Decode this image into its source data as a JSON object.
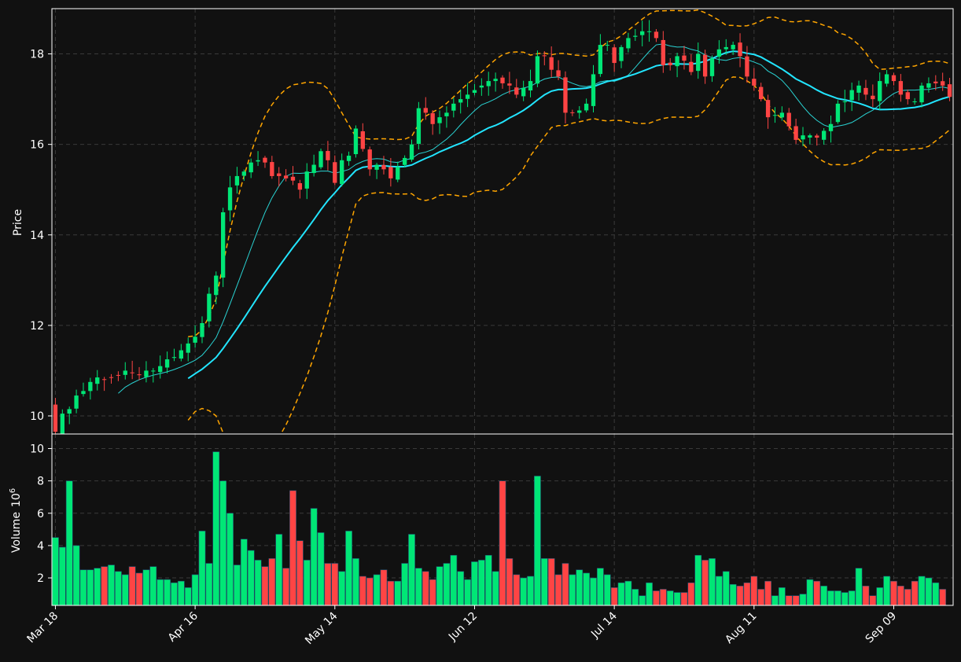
{
  "chart_data": {
    "type": "candlestick",
    "title": "",
    "theme": {
      "background": "#111111",
      "grid": "#3a3a3a",
      "axis": "#ffffff",
      "up_color": "#00e676",
      "down_color": "#ff4444",
      "ma_fast_color": "#2ad4d4",
      "ma_slow_color": "#22e5ff",
      "band_color": "#ffa500"
    },
    "price_panel": {
      "ylabel": "Price",
      "ylim": [
        9.6,
        19.0
      ],
      "yticks": [
        10,
        12,
        14,
        16,
        18
      ],
      "grid": true
    },
    "volume_panel": {
      "ylabel": "Volume",
      "ylabel_exp": "6",
      "ylabel_base": "10",
      "ylim": [
        0.3,
        10.9
      ],
      "yticks": [
        2,
        4,
        6,
        8,
        10
      ],
      "grid": true
    },
    "x_axis": {
      "tick_labels": [
        "Mar 18",
        "Apr 16",
        "May 14",
        "Jun 12",
        "Jul 14",
        "Aug 11",
        "Sep 09"
      ],
      "tick_indices": [
        0,
        20,
        40,
        60,
        80,
        100,
        120
      ],
      "count": 128
    },
    "series": [
      {
        "name": "",
        "kind": "moving_average_fast",
        "period": 10
      },
      {
        "name": "",
        "kind": "moving_average_slow",
        "period": 20
      },
      {
        "name": "",
        "kind": "bollinger_band",
        "period": 20
      }
    ],
    "closes": [
      9.65,
      10.05,
      10.15,
      10.45,
      10.55,
      10.75,
      10.85,
      10.8,
      10.85,
      10.9,
      11.0,
      10.95,
      10.9,
      11.0,
      11.0,
      11.1,
      11.25,
      11.3,
      11.45,
      11.6,
      11.75,
      12.05,
      12.7,
      13.1,
      14.5,
      15.05,
      15.3,
      15.4,
      15.6,
      15.65,
      15.6,
      15.3,
      15.3,
      15.25,
      15.2,
      15.0,
      15.4,
      15.55,
      15.85,
      15.65,
      15.15,
      15.65,
      15.75,
      16.35,
      15.9,
      15.45,
      15.55,
      15.45,
      15.25,
      15.5,
      15.7,
      16.0,
      16.8,
      16.7,
      16.45,
      16.6,
      16.7,
      16.9,
      17.0,
      17.1,
      17.2,
      17.3,
      17.4,
      17.45,
      17.35,
      17.3,
      17.1,
      17.25,
      17.4,
      17.95,
      17.95,
      17.65,
      17.5,
      16.7,
      16.7,
      16.75,
      16.9,
      17.55,
      18.2,
      18.2,
      17.8,
      18.15,
      18.35,
      18.4,
      18.5,
      18.5,
      18.35,
      17.75,
      17.75,
      17.95,
      17.85,
      17.6,
      18.0,
      17.5,
      17.9,
      18.1,
      18.15,
      18.2,
      17.95,
      17.5,
      17.3,
      17.0,
      16.6,
      16.65,
      16.7,
      16.4,
      16.1,
      16.2,
      16.2,
      16.15,
      16.3,
      16.45,
      16.9,
      16.95,
      17.2,
      17.3,
      17.1,
      17.0,
      17.4,
      17.55,
      17.4,
      17.1,
      17.0,
      16.95,
      17.3,
      17.35,
      17.35,
      17.3,
      17.05
    ],
    "volumes": [
      4.5,
      3.9,
      8.0,
      4.0,
      2.5,
      2.5,
      2.6,
      2.7,
      2.8,
      2.4,
      2.2,
      2.7,
      2.3,
      2.5,
      2.7,
      1.9,
      1.9,
      1.7,
      1.8,
      1.4,
      2.2,
      4.9,
      2.9,
      9.8,
      8.0,
      6.0,
      2.8,
      4.4,
      3.7,
      3.1,
      2.7,
      3.2,
      4.7,
      2.6,
      7.4,
      4.3,
      3.1,
      6.3,
      4.8,
      2.9,
      2.9,
      2.4,
      4.9,
      3.2,
      2.1,
      2.0,
      2.2,
      2.5,
      1.8,
      1.8,
      2.9,
      4.7,
      2.6,
      2.4,
      1.9,
      2.7,
      2.9,
      3.4,
      2.4,
      1.9,
      3.0,
      3.1,
      3.4,
      2.4,
      8.0,
      3.2,
      2.2,
      2.0,
      2.1,
      8.3,
      3.2,
      3.2,
      2.2,
      2.9,
      2.2,
      2.5,
      2.3,
      2.0,
      2.6,
      2.2,
      1.4,
      1.7,
      1.8,
      1.3,
      0.9,
      1.7,
      1.2,
      1.3,
      1.2,
      1.1,
      1.1,
      1.7,
      3.4,
      3.1,
      3.2,
      2.1,
      2.4,
      1.6,
      1.5,
      1.7,
      2.1,
      1.3,
      1.8,
      0.9,
      1.4,
      0.9,
      0.9,
      1.0,
      1.9,
      1.8,
      1.5,
      1.2,
      1.2,
      1.1,
      1.2,
      2.6,
      1.5,
      0.9,
      1.4,
      2.1,
      1.8,
      1.5,
      1.3,
      1.8,
      2.1,
      2.0,
      1.7,
      1.3
    ]
  }
}
